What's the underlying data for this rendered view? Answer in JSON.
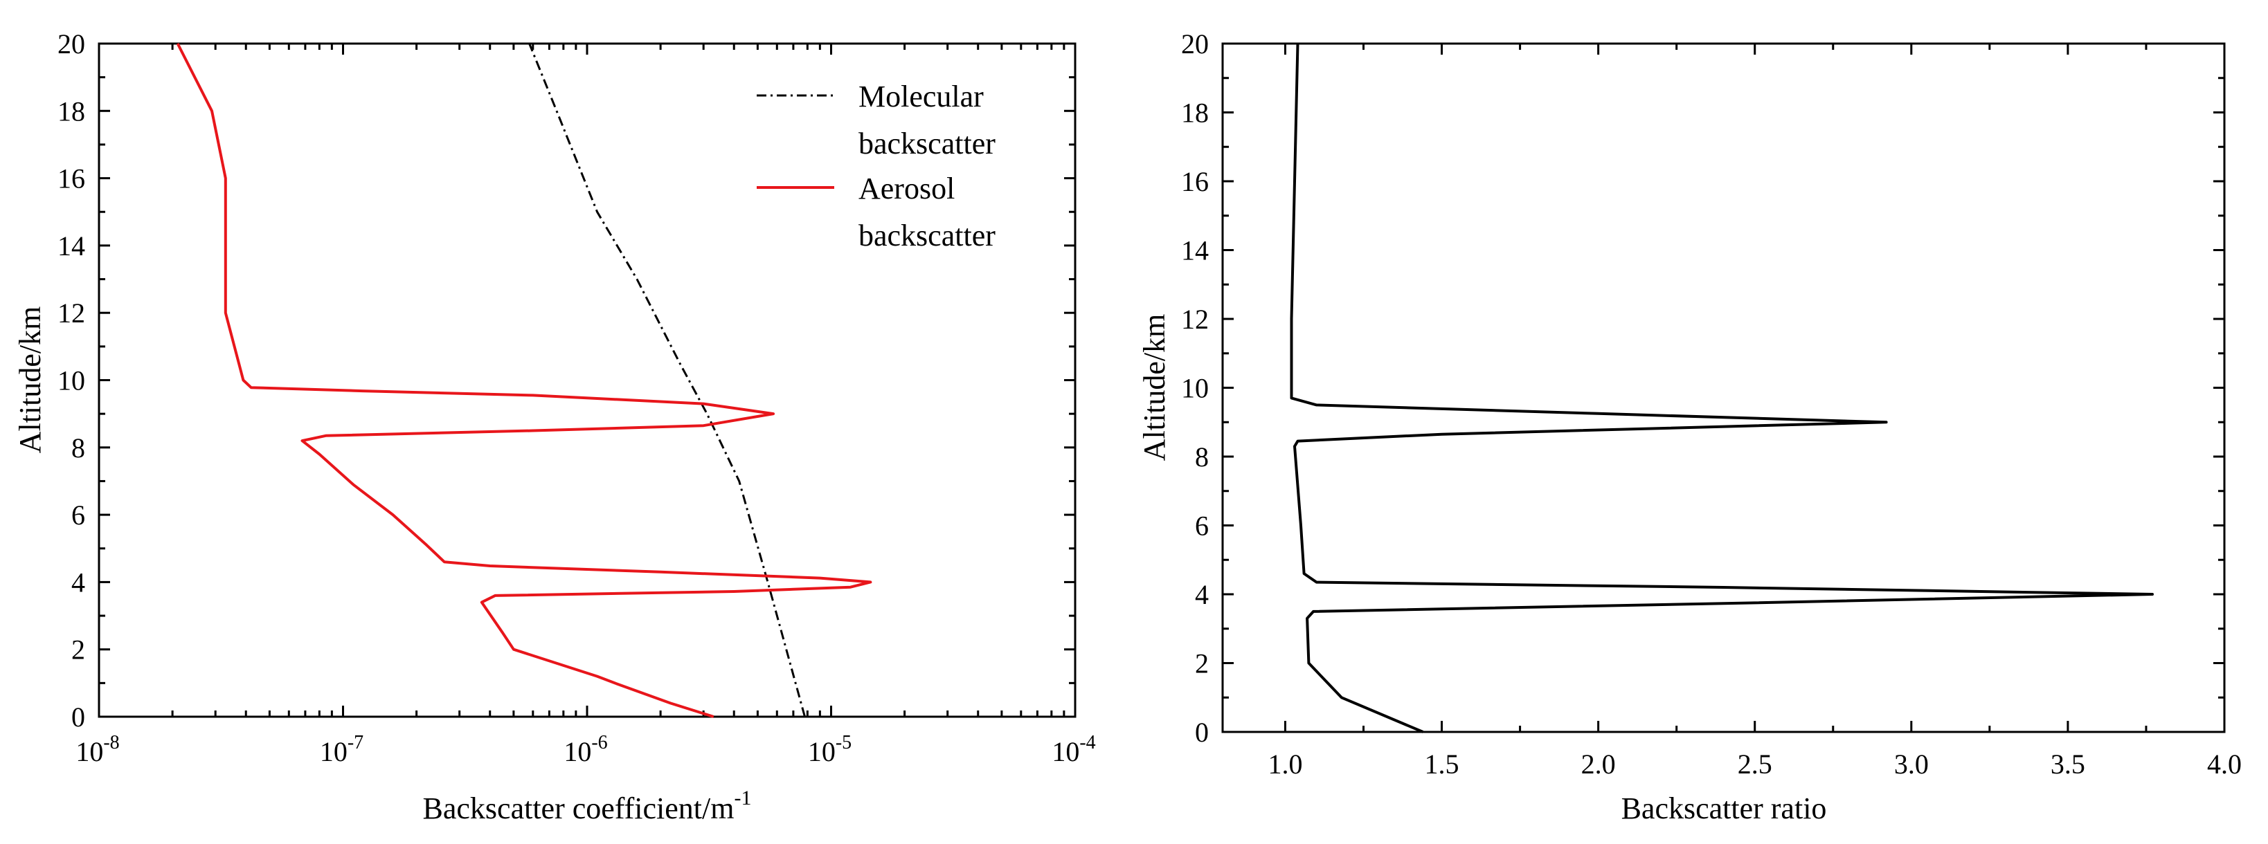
{
  "chart_data": [
    {
      "id": "left",
      "type": "line",
      "xscale": "log",
      "xlim": [
        1e-08,
        0.0001
      ],
      "ylim": [
        0,
        20
      ],
      "xlabel": "Backscatter coefficient/m",
      "xlabel_sup": "-1",
      "ylabel": "Altitude/km",
      "xticks": [
        {
          "value": 1e-08,
          "base": "10",
          "exp": "-8"
        },
        {
          "value": 1e-07,
          "base": "10",
          "exp": "-7"
        },
        {
          "value": 1e-06,
          "base": "10",
          "exp": "-6"
        },
        {
          "value": 1e-05,
          "base": "10",
          "exp": "-5"
        },
        {
          "value": 0.0001,
          "base": "10",
          "exp": "-4"
        }
      ],
      "yticks": [
        0,
        2,
        4,
        6,
        8,
        10,
        12,
        14,
        16,
        18,
        20
      ],
      "legend": {
        "position": "top-right",
        "entries": [
          {
            "series": "molecular",
            "lines": [
              "Molecular",
              "backscatter"
            ]
          },
          {
            "series": "aerosol",
            "lines": [
              "Aerosol",
              "backscatter"
            ]
          }
        ]
      },
      "series": [
        {
          "key": "molecular",
          "name": "Molecular backscatter",
          "color": "#000000",
          "dash": "dashdot",
          "points": [
            [
              7.8e-06,
              0
            ],
            [
              5.5e-06,
              4
            ],
            [
              4.2e-06,
              7
            ],
            [
              3.1e-06,
              9
            ],
            [
              2.4e-06,
              10.5
            ],
            [
              1.6e-06,
              13
            ],
            [
              1.1e-06,
              15
            ],
            [
              7.5e-07,
              18
            ],
            [
              5.8e-07,
              20
            ]
          ]
        },
        {
          "key": "aerosol",
          "name": "Aerosol backscatter",
          "color": "#e8161b",
          "dash": "solid",
          "points": [
            [
              3.3e-06,
              0
            ],
            [
              2.2e-06,
              0.4
            ],
            [
              1.3e-06,
              1.0
            ],
            [
              1.1e-06,
              1.2
            ],
            [
              5e-07,
              2.0
            ],
            [
              4.5e-07,
              2.5
            ],
            [
              3.7e-07,
              3.4
            ],
            [
              4.2e-07,
              3.6
            ],
            [
              4e-06,
              3.72
            ],
            [
              1.2e-05,
              3.85
            ],
            [
              1.45e-05,
              4.0
            ],
            [
              9e-06,
              4.12
            ],
            [
              2e-06,
              4.3
            ],
            [
              4e-07,
              4.48
            ],
            [
              2.6e-07,
              4.6
            ],
            [
              2.2e-07,
              5.1
            ],
            [
              1.6e-07,
              6.0
            ],
            [
              1.1e-07,
              6.9
            ],
            [
              8e-08,
              7.8
            ],
            [
              6.8e-08,
              8.2
            ],
            [
              8.5e-08,
              8.35
            ],
            [
              6e-07,
              8.5
            ],
            [
              3e-06,
              8.65
            ],
            [
              5.8e-06,
              9.0
            ],
            [
              3e-06,
              9.3
            ],
            [
              6e-07,
              9.55
            ],
            [
              1.2e-07,
              9.68
            ],
            [
              4.2e-08,
              9.78
            ],
            [
              3.9e-08,
              10.0
            ],
            [
              3.3e-08,
              12
            ],
            [
              3.3e-08,
              16
            ],
            [
              2.9e-08,
              18
            ],
            [
              2.1e-08,
              20
            ]
          ]
        }
      ]
    },
    {
      "id": "right",
      "type": "line",
      "xscale": "linear",
      "xlim": [
        0.8,
        4.0
      ],
      "ylim": [
        0,
        20
      ],
      "xlabel": "Backscatter ratio",
      "ylabel": "Altitude/km",
      "xticks": [
        {
          "value": 1.0,
          "label": "1.0"
        },
        {
          "value": 1.5,
          "label": "1.5"
        },
        {
          "value": 2.0,
          "label": "2.0"
        },
        {
          "value": 2.5,
          "label": "2.5"
        },
        {
          "value": 3.0,
          "label": "3.0"
        },
        {
          "value": 3.5,
          "label": "3.5"
        },
        {
          "value": 4.0,
          "label": "4.0"
        }
      ],
      "yticks": [
        0,
        2,
        4,
        6,
        8,
        10,
        12,
        14,
        16,
        18,
        20
      ],
      "series": [
        {
          "key": "ratio",
          "name": "Backscatter ratio",
          "color": "#000000",
          "dash": "solid",
          "points": [
            [
              1.44,
              0
            ],
            [
              1.18,
              1.0
            ],
            [
              1.075,
              2.0
            ],
            [
              1.07,
              3.3
            ],
            [
              1.09,
              3.5
            ],
            [
              2.5,
              3.75
            ],
            [
              3.77,
              4.0
            ],
            [
              2.4,
              4.2
            ],
            [
              1.1,
              4.35
            ],
            [
              1.06,
              4.6
            ],
            [
              1.05,
              6.0
            ],
            [
              1.03,
              8.3
            ],
            [
              1.04,
              8.45
            ],
            [
              1.5,
              8.65
            ],
            [
              2.92,
              9.0
            ],
            [
              2.0,
              9.25
            ],
            [
              1.1,
              9.5
            ],
            [
              1.02,
              9.7
            ],
            [
              1.02,
              12
            ],
            [
              1.03,
              16
            ],
            [
              1.04,
              20
            ]
          ]
        }
      ]
    }
  ]
}
